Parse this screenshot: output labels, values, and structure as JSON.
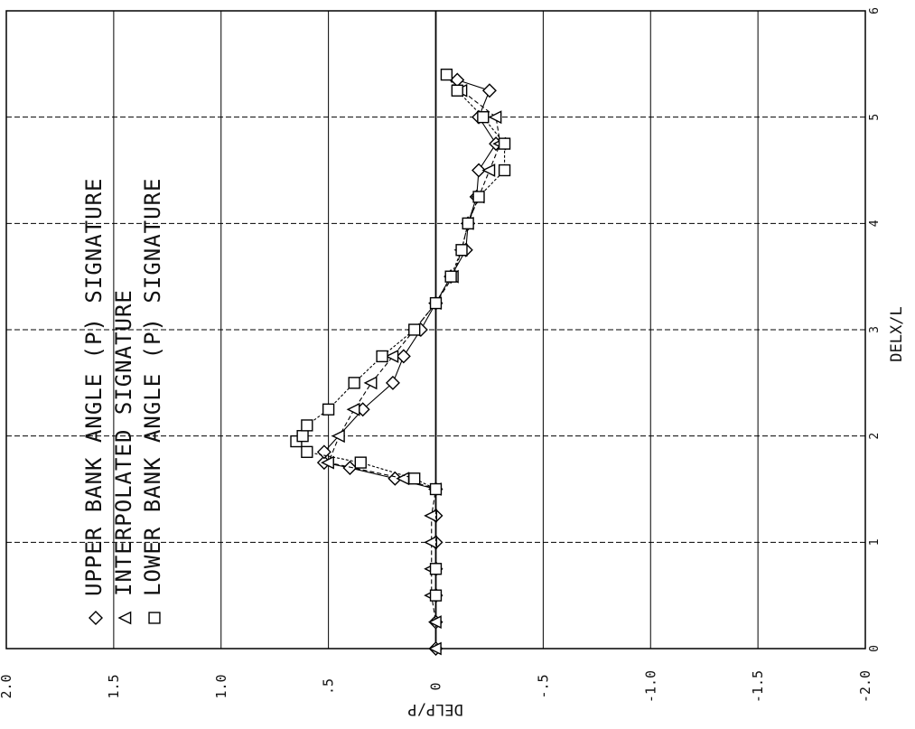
{
  "chart_data": {
    "type": "line",
    "title": "",
    "xlabel": "DELX/L",
    "ylabel": "DELP/P",
    "xlim": [
      0,
      6
    ],
    "ylim": [
      -2.0,
      2.0
    ],
    "x_ticks": [
      "0",
      "1",
      "2",
      "3",
      "4",
      "5",
      "6"
    ],
    "y_ticks": [
      "2.0",
      "1.5",
      "1.0",
      ".5",
      "0",
      "-.5",
      "-1.0",
      "-1.5",
      "-2.0"
    ],
    "orientation": "rotated 90 degrees counter-clockwise",
    "grid": true,
    "legend_position": "top-left (rotated)",
    "series": [
      {
        "name": "UPPER BANK ANGLE (P) SIGNATURE",
        "marker": "diamond",
        "legend_symbol": "◇",
        "x": [
          0.0,
          0.25,
          0.5,
          0.75,
          1.0,
          1.25,
          1.5,
          1.6,
          1.7,
          1.75,
          1.85,
          2.25,
          2.5,
          2.75,
          3.0,
          3.25,
          3.5,
          3.75,
          4.0,
          4.25,
          4.5,
          4.75,
          5.0,
          5.25,
          5.35
        ],
        "y": [
          0.0,
          0.0,
          0.0,
          0.0,
          0.0,
          0.0,
          0.0,
          0.19,
          0.4,
          0.52,
          0.52,
          0.34,
          0.2,
          0.15,
          0.07,
          0.0,
          -0.07,
          -0.14,
          -0.15,
          -0.19,
          -0.2,
          -0.28,
          -0.2,
          -0.25,
          -0.1
        ]
      },
      {
        "name": "INTERPOLATED SIGNATURE",
        "marker": "triangle",
        "legend_symbol": "◂",
        "x": [
          0.0,
          0.25,
          0.5,
          0.75,
          1.0,
          1.25,
          1.5,
          1.6,
          1.75,
          2.0,
          2.25,
          2.5,
          2.75,
          3.0,
          3.25,
          3.5,
          3.75,
          4.0,
          4.25,
          4.5,
          4.75,
          5.0,
          5.25
        ],
        "y": [
          0.0,
          0.0,
          0.02,
          0.02,
          0.02,
          0.02,
          0.0,
          0.15,
          0.5,
          0.45,
          0.38,
          0.3,
          0.2,
          0.1,
          0.0,
          -0.08,
          -0.12,
          -0.15,
          -0.2,
          -0.25,
          -0.3,
          -0.28,
          -0.12
        ]
      },
      {
        "name": "LOWER BANK ANGLE (P) SIGNATURE",
        "marker": "square",
        "legend_symbol": "□",
        "x": [
          0.5,
          0.75,
          1.5,
          1.6,
          1.75,
          1.85,
          1.95,
          2.0,
          2.1,
          2.25,
          2.5,
          2.75,
          3.0,
          3.25,
          3.5,
          3.75,
          4.0,
          4.25,
          4.5,
          4.75,
          5.0,
          5.25,
          5.4
        ],
        "y": [
          0.0,
          0.0,
          0.0,
          0.1,
          0.35,
          0.6,
          0.65,
          0.62,
          0.6,
          0.5,
          0.38,
          0.25,
          0.1,
          0.0,
          -0.07,
          -0.12,
          -0.15,
          -0.2,
          -0.32,
          -0.32,
          -0.22,
          -0.1,
          -0.05
        ]
      }
    ]
  }
}
